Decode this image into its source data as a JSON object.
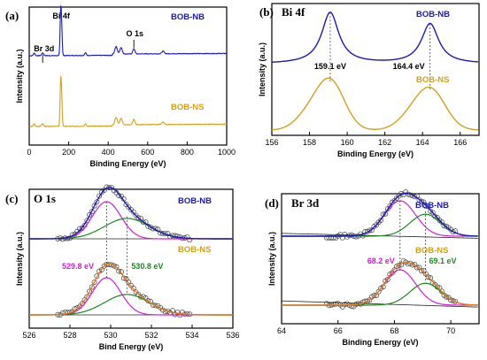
{
  "chart_data": [
    {
      "panel_label": "(a)",
      "type": "line",
      "xlabel": "Binding Energy (eV)",
      "ylabel": "Intensity (a.u.)",
      "xlim": [
        0,
        1000
      ],
      "xticks": [
        0,
        200,
        400,
        600,
        800,
        1000
      ],
      "series": [
        {
          "name": "BOB-NB",
          "color": "#1a1ab8"
        },
        {
          "name": "BOB-NS",
          "color": "#d4a017"
        }
      ],
      "annotations": [
        {
          "text": "Bi 4f",
          "x": 159
        },
        {
          "text": "Br 3d",
          "x": 68
        },
        {
          "text": "O 1s",
          "x": 530
        }
      ]
    },
    {
      "panel_label": "(b)",
      "title": "Bi 4f",
      "type": "line",
      "xlabel": "Binding Energy (eV)",
      "ylabel": "Intensity (a.u.)",
      "xlim": [
        156,
        167
      ],
      "xticks": [
        156,
        158,
        160,
        162,
        164,
        166
      ],
      "series": [
        {
          "name": "BOB-NB",
          "color": "#1a1ab8"
        },
        {
          "name": "BOB-NS",
          "color": "#d4a017"
        }
      ],
      "peaks": [
        {
          "text": "159.1 eV",
          "x": 159.1
        },
        {
          "text": "164.4 eV",
          "x": 164.4
        }
      ]
    },
    {
      "panel_label": "(c)",
      "title": "O 1s",
      "type": "line",
      "xlabel": "Bind Energy (eV)",
      "ylabel": "Intensity (a.u.)",
      "xlim": [
        526,
        536
      ],
      "xticks": [
        526,
        528,
        530,
        532,
        534,
        536
      ],
      "series": [
        {
          "name": "BOB-NB",
          "color": "#1a1ab8"
        },
        {
          "name": "BOB-NS",
          "color": "#d4a017"
        }
      ],
      "peaks": [
        {
          "text": "529.8 eV",
          "x": 529.8,
          "color": "#d21fd2"
        },
        {
          "text": "530.8 eV",
          "x": 530.8,
          "color": "#1a8a1a"
        }
      ]
    },
    {
      "panel_label": "(d)",
      "title": "Br 3d",
      "type": "line",
      "xlabel": "Binding Energy (eV)",
      "ylabel": "Intensity (a.u.)",
      "xlim": [
        64,
        71
      ],
      "xticks": [
        64,
        66,
        68,
        70
      ],
      "series": [
        {
          "name": "BOB-NB",
          "color": "#1a1ab8"
        },
        {
          "name": "BOB-NS",
          "color": "#d4a017"
        }
      ],
      "peaks": [
        {
          "text": "68.2 eV",
          "x": 68.2,
          "color": "#d21fd2"
        },
        {
          "text": "69.1 eV",
          "x": 69.1,
          "color": "#1a8a1a"
        }
      ]
    }
  ],
  "colors": {
    "nb": "#1a1ab8",
    "ns": "#d4a017",
    "fit_magenta": "#d21fd2",
    "fit_green": "#1a8a1a",
    "fit_envelope": "#e07a1f"
  }
}
